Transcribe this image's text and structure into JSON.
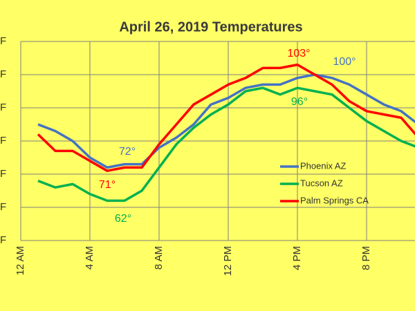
{
  "chart_data": {
    "type": "line",
    "title": "April 26, 2019 Temperatures",
    "x": [
      1,
      2,
      3,
      4,
      5,
      6,
      7,
      8,
      9,
      10,
      11,
      12,
      13,
      14,
      15,
      16,
      17,
      18,
      19,
      20,
      21,
      22,
      23
    ],
    "series": [
      {
        "name": "Phoenix AZ",
        "color": "#4472c4",
        "values": [
          85,
          83,
          80,
          75,
          72,
          73,
          73,
          78,
          81,
          85,
          91,
          93,
          96,
          97,
          97,
          99,
          100,
          99,
          97,
          94,
          91,
          89,
          85
        ]
      },
      {
        "name": "Tucson AZ",
        "color": "#00b050",
        "values": [
          68,
          66,
          67,
          64,
          62,
          62,
          65,
          72,
          79,
          84,
          88,
          91,
          95,
          96,
          94,
          96,
          95,
          94,
          90,
          86,
          83,
          80,
          78
        ]
      },
      {
        "name": "Palm Springs CA",
        "color": "#ff0000",
        "values": [
          82,
          77,
          77,
          74,
          71,
          72,
          72,
          79,
          85,
          91,
          94,
          97,
          99,
          102,
          102,
          103,
          100,
          97,
          92,
          89,
          88,
          87,
          81
        ]
      }
    ],
    "annotations": [
      {
        "text": "72°",
        "color": "#4472c4"
      },
      {
        "text": "71°",
        "color": "#ff0000"
      },
      {
        "text": "62°",
        "color": "#00b050"
      },
      {
        "text": "96°",
        "color": "#00b050"
      },
      {
        "text": "103°",
        "color": "#ff0000"
      },
      {
        "text": "100°",
        "color": "#4472c4"
      }
    ],
    "xlim": [
      0,
      22.8
    ],
    "xticks": [
      {
        "value": 0,
        "label": "12 AM"
      },
      {
        "value": 4,
        "label": "4 AM"
      },
      {
        "value": 8,
        "label": "8 AM"
      },
      {
        "value": 12,
        "label": "12 PM"
      },
      {
        "value": 16,
        "label": "4 PM"
      },
      {
        "value": 20,
        "label": "8 PM"
      }
    ],
    "ylim": [
      50,
      110
    ],
    "yticks": [
      {
        "value": 50,
        "label": "F"
      },
      {
        "value": 60,
        "label": "F"
      },
      {
        "value": 70,
        "label": "F"
      },
      {
        "value": 80,
        "label": "F"
      },
      {
        "value": 90,
        "label": "F"
      },
      {
        "value": 100,
        "label": "F"
      },
      {
        "value": 110,
        "label": "F"
      }
    ],
    "grid": true,
    "legend": "right"
  }
}
